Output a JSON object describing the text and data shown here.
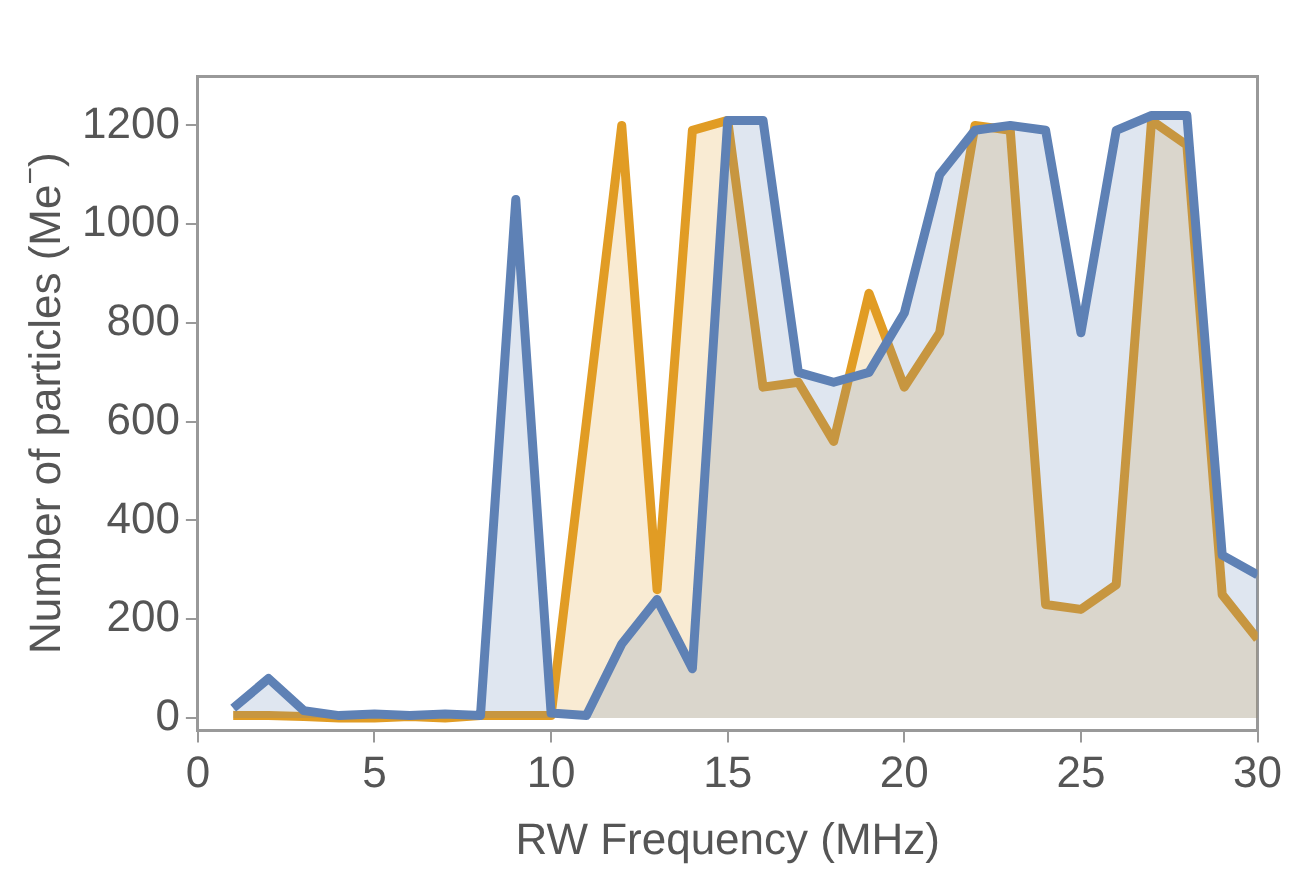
{
  "chart_data": {
    "type": "area",
    "xlabel": "RW Frequency (MHz)",
    "ylabel": "Number of particles (Me$^{−}$)",
    "x": [
      1,
      2,
      3,
      4,
      5,
      6,
      7,
      8,
      9,
      10,
      11,
      12,
      13,
      14,
      15,
      16,
      17,
      18,
      19,
      20,
      21,
      22,
      23,
      24,
      25,
      26,
      27,
      28,
      29,
      30
    ],
    "series": [
      {
        "color": "#5e81b5",
        "values": [
          20,
          80,
          15,
          5,
          8,
          5,
          8,
          5,
          1050,
          10,
          5,
          150,
          240,
          100,
          1210,
          1210,
          700,
          680,
          700,
          820,
          1100,
          1190,
          1200,
          1190,
          780,
          1190,
          1220,
          1220,
          330,
          290
        ]
      },
      {
        "color": "#e19c24",
        "values": [
          5,
          5,
          3,
          0,
          0,
          3,
          0,
          5,
          5,
          5,
          600,
          1200,
          260,
          1190,
          1210,
          670,
          680,
          560,
          860,
          670,
          780,
          1200,
          1190,
          230,
          220,
          270,
          1210,
          1160,
          250,
          160
        ]
      }
    ],
    "xlim": [
      0,
      30
    ],
    "xticks": [
      0,
      5,
      10,
      15,
      20,
      25,
      30
    ],
    "ylim": [
      -25,
      1300
    ],
    "yticks": [
      0,
      200,
      400,
      600,
      800,
      1000,
      1200
    ],
    "grid": false,
    "legend": false,
    "marker": "none",
    "line_style": "solid"
  }
}
